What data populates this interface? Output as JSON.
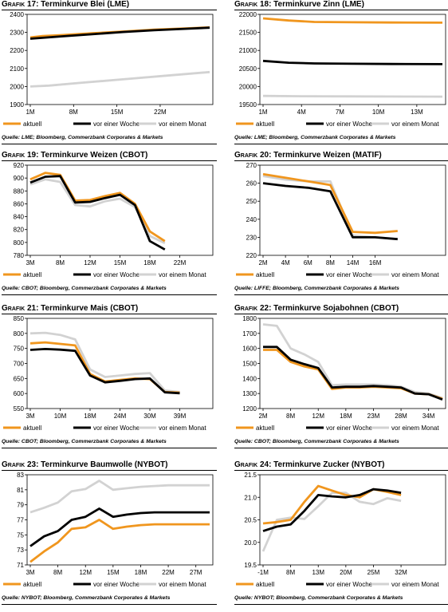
{
  "colors": {
    "aktuell": "#f0961e",
    "woche": "#000000",
    "monat": "#d2d2d2"
  },
  "legend_labels": [
    "aktuell",
    "vor einer Woche",
    "vor einem Monat"
  ],
  "charts": [
    {
      "title_label": "Grafik 17:",
      "title_text": "Terminkurve Blei (LME)",
      "source": "Quelle: LME; Bloomberg, Commerzbank Corporates & Markets",
      "chart_data": {
        "type": "line",
        "x_count": 30,
        "xticks": [
          {
            "i": 0,
            "label": "1M"
          },
          {
            "i": 7,
            "label": "8M"
          },
          {
            "i": 14,
            "label": "15M"
          },
          {
            "i": 21,
            "label": "22M"
          }
        ],
        "ylim": [
          1900,
          2400
        ],
        "yticks": [
          1900,
          2000,
          2100,
          2200,
          2300,
          2400
        ],
        "series": [
          {
            "name": "aktuell",
            "x": [
              0,
              2,
              5,
              10,
              15,
              20,
              25,
              29
            ],
            "values": [
              2272,
              2280,
              2285,
              2295,
              2305,
              2315,
              2322,
              2328
            ]
          },
          {
            "name": "vor einer Woche",
            "x": [
              0,
              2,
              5,
              10,
              15,
              20,
              25,
              29
            ],
            "values": [
              2265,
              2270,
              2278,
              2290,
              2302,
              2312,
              2320,
              2326
            ]
          },
          {
            "name": "vor einem Monat",
            "x": [
              0,
              3,
              8,
              15,
              22,
              29
            ],
            "values": [
              2000,
              2005,
              2020,
              2040,
              2060,
              2080
            ]
          }
        ]
      }
    },
    {
      "title_label": "Grafik 18:",
      "title_text": "Terminkurve Zinn (LME)",
      "source": "Quelle: LME; Bloomberg, Commerzbank Corporates & Markets",
      "chart_data": {
        "type": "line",
        "x_count": 15,
        "xticks": [
          {
            "i": 0,
            "label": "1M"
          },
          {
            "i": 3,
            "label": "4M"
          },
          {
            "i": 6,
            "label": "7M"
          },
          {
            "i": 9,
            "label": "10M"
          },
          {
            "i": 12,
            "label": "13M"
          }
        ],
        "ylim": [
          19500,
          22000
        ],
        "yticks": [
          19500,
          20000,
          20500,
          21000,
          21500,
          22000
        ],
        "series": [
          {
            "name": "aktuell",
            "x": [
              0,
              2,
              4,
              7,
              10,
              14
            ],
            "values": [
              21890,
              21830,
              21790,
              21780,
              21775,
              21770
            ]
          },
          {
            "name": "vor einer Woche",
            "x": [
              0,
              2,
              4,
              7,
              10,
              14
            ],
            "values": [
              20710,
              20660,
              20640,
              20630,
              20625,
              20620
            ]
          },
          {
            "name": "vor einem Monat",
            "x": [
              0,
              3,
              7,
              14
            ],
            "values": [
              19740,
              19730,
              19725,
              19720
            ]
          }
        ]
      }
    },
    {
      "title_label": "Grafik 19:",
      "title_text": "Terminkurve Weizen (CBOT)",
      "source": "Quelle: CBOT; Bloomberg, Commerzbank Corporates & Markets",
      "chart_data": {
        "type": "line",
        "x_count": 13,
        "xticks": [
          {
            "i": 0,
            "label": "3M"
          },
          {
            "i": 2,
            "label": "8M"
          },
          {
            "i": 4,
            "label": "12M"
          },
          {
            "i": 6,
            "label": "15M"
          },
          {
            "i": 8,
            "label": "18M"
          },
          {
            "i": 10,
            "label": "22M"
          }
        ],
        "ylim": [
          780,
          920
        ],
        "yticks": [
          780,
          800,
          820,
          840,
          860,
          880,
          900,
          920
        ],
        "series": [
          {
            "name": "aktuell",
            "x": [
              0,
              1,
              2,
              3,
              4,
              5,
              6,
              7,
              8,
              9,
              10,
              11
            ],
            "values": [
              898,
              908,
              905,
              865,
              866,
              872,
              877,
              860,
              817,
              802,
              null,
              null
            ]
          },
          {
            "name": "vor einer Woche",
            "x": [
              0,
              1,
              2,
              3,
              4,
              5,
              6,
              7,
              8,
              9,
              10,
              11
            ],
            "values": [
              893,
              902,
              903,
              862,
              863,
              869,
              874,
              858,
              802,
              789,
              null,
              null
            ]
          },
          {
            "name": "vor einem Monat",
            "x": [
              0,
              1,
              2,
              3,
              4,
              5,
              6,
              7,
              8,
              9,
              10,
              11
            ],
            "values": [
              890,
              898,
              894,
              858,
              856,
              864,
              868,
              855,
              810,
              799,
              null,
              null
            ]
          }
        ]
      }
    },
    {
      "title_label": "Grafik 20:",
      "title_text": "Terminkurve Weizen (MATIF)",
      "source": "Quelle: LIFFE; Bloomberg, Commerzbank Corporates & Markets",
      "chart_data": {
        "type": "line",
        "x_count": 9,
        "xticks": [
          {
            "i": 0,
            "label": "2M"
          },
          {
            "i": 1,
            "label": "4M"
          },
          {
            "i": 2,
            "label": "6M"
          },
          {
            "i": 3,
            "label": "8M"
          },
          {
            "i": 4,
            "label": "14M"
          },
          {
            "i": 5,
            "label": "16M"
          }
        ],
        "ylim": [
          220,
          270
        ],
        "yticks": [
          220,
          230,
          240,
          250,
          260,
          270
        ],
        "series": [
          {
            "name": "aktuell",
            "x": [
              0,
              1,
              2,
              3,
              4,
              5,
              6
            ],
            "values": [
              265,
              263,
              261,
              259,
              233,
              232.5,
              233.5
            ]
          },
          {
            "name": "vor einer Woche",
            "x": [
              0,
              1,
              2,
              3,
              4,
              5,
              6
            ],
            "values": [
              260,
              258.5,
              257.5,
              255.5,
              230,
              230,
              229
            ]
          },
          {
            "name": "vor einem Monat",
            "x": [
              0,
              1,
              2,
              3,
              4,
              5,
              6
            ],
            "values": [
              264,
              262,
              261,
              261,
              231,
              230,
              229
            ]
          }
        ]
      }
    },
    {
      "title_label": "Grafik 21:",
      "title_text": "Terminkurve Mais (CBOT)",
      "source": "Quelle: CBOT; Bloomberg, Commerzbank Corporates & Markets",
      "chart_data": {
        "type": "line",
        "x_count": 13,
        "xticks": [
          {
            "i": 0,
            "label": "3M"
          },
          {
            "i": 2,
            "label": "10M"
          },
          {
            "i": 4,
            "label": "18M"
          },
          {
            "i": 6,
            "label": "24M"
          },
          {
            "i": 8,
            "label": "30M"
          },
          {
            "i": 10,
            "label": "39M"
          }
        ],
        "ylim": [
          550,
          850
        ],
        "yticks": [
          550,
          600,
          650,
          700,
          750,
          800,
          850
        ],
        "series": [
          {
            "name": "aktuell",
            "x": [
              0,
              1,
              2,
              3,
              4,
              5,
              6,
              7,
              8,
              9,
              10
            ],
            "values": [
              767,
              770,
              765,
              760,
              665,
              640,
              645,
              650,
              648,
              605,
              603
            ]
          },
          {
            "name": "vor einer Woche",
            "x": [
              0,
              1,
              2,
              3,
              4,
              5,
              6,
              7,
              8,
              9,
              10
            ],
            "values": [
              745,
              748,
              746,
              742,
              660,
              637,
              642,
              648,
              650,
              604,
              601
            ]
          },
          {
            "name": "vor einem Monat",
            "x": [
              0,
              1,
              2,
              3,
              4,
              5,
              6,
              7,
              8,
              9,
              10
            ],
            "values": [
              800,
              802,
              795,
              780,
              680,
              655,
              660,
              665,
              668,
              610,
              605
            ]
          }
        ]
      }
    },
    {
      "title_label": "Grafik 22:",
      "title_text": "Terminkurve Sojabohnen (CBOT)",
      "source": "Quelle: CBOT; Bloomberg, Commerzbank Corporates & Markets",
      "chart_data": {
        "type": "line",
        "x_count": 14,
        "xticks": [
          {
            "i": 0,
            "label": "2M"
          },
          {
            "i": 2,
            "label": "8M"
          },
          {
            "i": 4,
            "label": "12M"
          },
          {
            "i": 6,
            "label": "18M"
          },
          {
            "i": 8,
            "label": "23M"
          },
          {
            "i": 10,
            "label": "28M"
          },
          {
            "i": 12,
            "label": "34M"
          }
        ],
        "ylim": [
          1200,
          1800
        ],
        "yticks": [
          1200,
          1300,
          1400,
          1500,
          1600,
          1700,
          1800
        ],
        "series": [
          {
            "name": "aktuell",
            "x": [
              0,
              1,
              2,
              3,
              4,
              5,
              6,
              7,
              8,
              9,
              10,
              11,
              12,
              13
            ],
            "values": [
              1590,
              1590,
              1510,
              1480,
              1460,
              1330,
              1340,
              1340,
              1345,
              1340,
              1335,
              1300,
              1295,
              1265
            ]
          },
          {
            "name": "vor einer Woche",
            "x": [
              0,
              1,
              2,
              3,
              4,
              5,
              6,
              7,
              8,
              9,
              10,
              11,
              12,
              13
            ],
            "values": [
              1610,
              1610,
              1525,
              1495,
              1470,
              1340,
              1345,
              1345,
              1350,
              1345,
              1340,
              1300,
              1295,
              1260
            ]
          },
          {
            "name": "vor einem Monat",
            "x": [
              0,
              1,
              2,
              3,
              4,
              5,
              6,
              7,
              8,
              9,
              10,
              11,
              12,
              13
            ],
            "values": [
              1760,
              1750,
              1600,
              1560,
              1510,
              1355,
              1360,
              1360,
              1360,
              1355,
              1345,
              1310,
              1300,
              1270
            ]
          }
        ]
      }
    },
    {
      "title_label": "Grafik 23:",
      "title_text": "Terminkurve Baumwolle (NYBOT)",
      "source": "Quelle: NYBOT; Bloomberg, Commerzbank Corporates & Markets",
      "chart_data": {
        "type": "line",
        "x_count": 14,
        "xticks": [
          {
            "i": 0,
            "label": "3M"
          },
          {
            "i": 2,
            "label": "8M"
          },
          {
            "i": 4,
            "label": "12M"
          },
          {
            "i": 6,
            "label": "15M"
          },
          {
            "i": 8,
            "label": "18M"
          },
          {
            "i": 10,
            "label": "22M"
          },
          {
            "i": 12,
            "label": "27M"
          }
        ],
        "ylim": [
          71,
          83
        ],
        "yticks": [
          71,
          73,
          75,
          77,
          79,
          81,
          83
        ],
        "series": [
          {
            "name": "aktuell",
            "x": [
              0,
              1,
              2,
              3,
              4,
              5,
              6,
              7,
              8,
              9,
              10,
              11,
              12,
              13
            ],
            "values": [
              71.4,
              72.8,
              74,
              75.8,
              76,
              77,
              75.8,
              76.1,
              76.3,
              76.4,
              76.4,
              76.4,
              76.4,
              76.4
            ]
          },
          {
            "name": "vor einer Woche",
            "x": [
              0,
              1,
              2,
              3,
              4,
              5,
              6,
              7,
              8,
              9,
              10,
              11,
              12,
              13
            ],
            "values": [
              73.5,
              74.8,
              75.5,
              77,
              77.4,
              78.5,
              77.4,
              77.7,
              77.9,
              78,
              78,
              78,
              78,
              78
            ]
          },
          {
            "name": "vor einem Monat",
            "x": [
              0,
              1,
              2,
              3,
              4,
              5,
              6,
              7,
              8,
              9,
              10,
              11,
              12,
              13
            ],
            "values": [
              78,
              78.6,
              79.3,
              80.8,
              81.1,
              82.2,
              81,
              81.2,
              81.4,
              81.5,
              81.6,
              81.6,
              81.6,
              81.6
            ]
          }
        ]
      }
    },
    {
      "title_label": "Grafik 24:",
      "title_text": "Terminkurve Zucker (NYBOT)",
      "source": "Quelle: NYBOT; Bloomberg, Commerzbank Corporates & Markets",
      "chart_data": {
        "type": "line",
        "x_count": 14,
        "xticks": [
          {
            "i": 0,
            "label": "-1M"
          },
          {
            "i": 2,
            "label": "8M"
          },
          {
            "i": 4,
            "label": "13M"
          },
          {
            "i": 6,
            "label": "20M"
          },
          {
            "i": 8,
            "label": "25M"
          },
          {
            "i": 10,
            "label": "32M"
          }
        ],
        "ylim": [
          19.5,
          21.5
        ],
        "yticks": [
          19.5,
          20.0,
          20.5,
          21.0,
          21.5
        ],
        "series": [
          {
            "name": "aktuell",
            "x": [
              0,
              1,
              2,
              3,
              4,
              5,
              6,
              7,
              8,
              9,
              10
            ],
            "values": [
              20.42,
              20.45,
              20.5,
              20.9,
              21.25,
              21.15,
              21.05,
              21.0,
              21.18,
              21.12,
              21.05
            ]
          },
          {
            "name": "vor einer Woche",
            "x": [
              0,
              1,
              2,
              3,
              4,
              5,
              6,
              7,
              8,
              9,
              10
            ],
            "values": [
              20.25,
              20.35,
              20.4,
              20.7,
              21.05,
              21.02,
              21.0,
              21.05,
              21.18,
              21.15,
              21.1
            ]
          },
          {
            "name": "vor einem Monat",
            "x": [
              0,
              1,
              2,
              3,
              4,
              5,
              6,
              7,
              8,
              9,
              10
            ],
            "values": [
              19.8,
              20.5,
              20.55,
              20.52,
              20.8,
              21.1,
              21.1,
              20.9,
              20.85,
              20.98,
              20.92
            ]
          }
        ]
      }
    }
  ]
}
